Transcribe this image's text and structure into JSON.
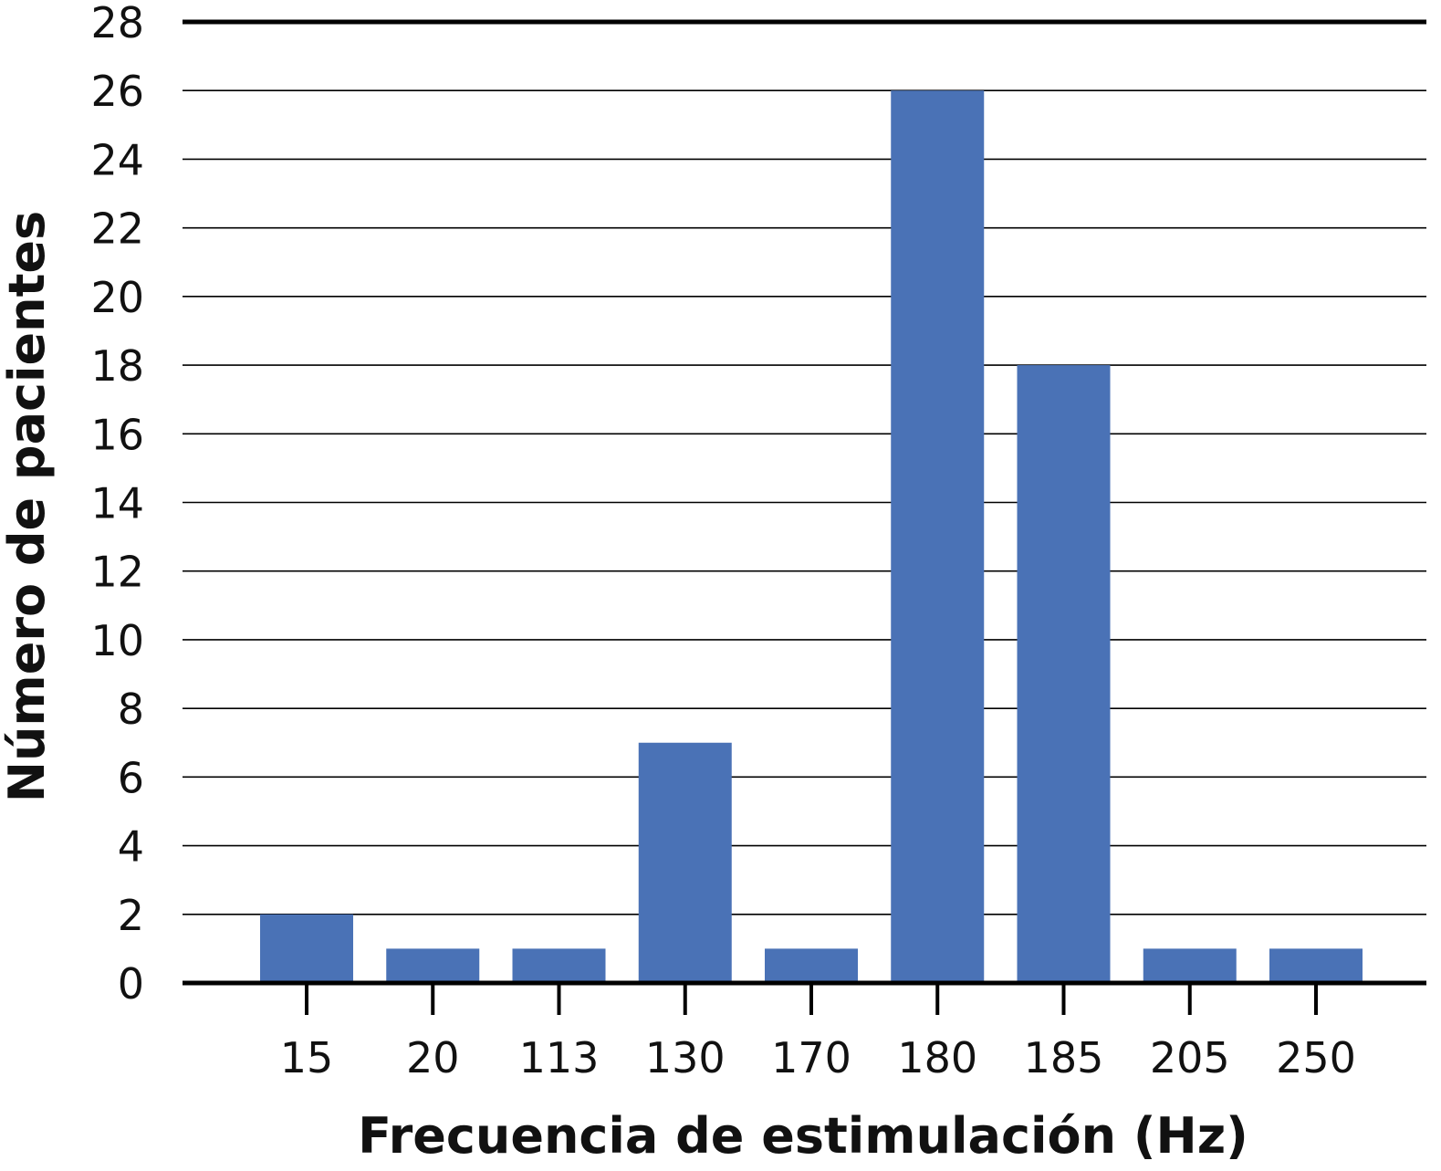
{
  "chart_data": {
    "type": "bar",
    "title": "",
    "xlabel": "Frecuencia de estimulación (Hz)",
    "ylabel": "Número de pacientes",
    "categories": [
      "15",
      "20",
      "113",
      "130",
      "170",
      "180",
      "185",
      "205",
      "250"
    ],
    "values": [
      2,
      1,
      1,
      7,
      1,
      26,
      18,
      1,
      1
    ],
    "ylim": [
      0,
      28
    ],
    "yticks": [
      0,
      2,
      4,
      6,
      8,
      10,
      12,
      14,
      16,
      18,
      20,
      22,
      24,
      26,
      28
    ],
    "grid": true,
    "bar_color": "#4a72b6",
    "legend": "none"
  }
}
